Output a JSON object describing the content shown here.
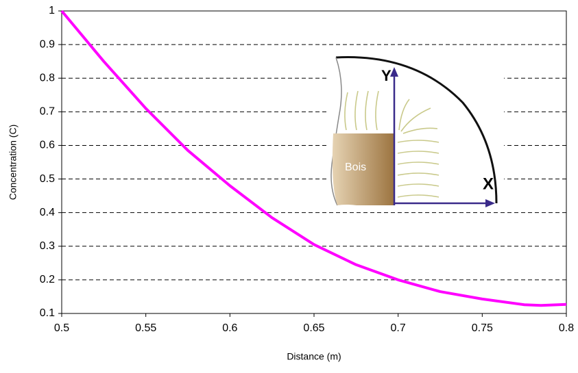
{
  "chart_data": {
    "type": "line",
    "x_label": "Distance (m)",
    "y_label": "Concentration (C)",
    "x": [
      0.5,
      0.525,
      0.55,
      0.575,
      0.6,
      0.625,
      0.65,
      0.675,
      0.7,
      0.725,
      0.75,
      0.775,
      0.785,
      0.8
    ],
    "series": [
      {
        "color": "#ff00ff",
        "values": [
          1,
          0.85,
          0.71,
          0.585,
          0.48,
          0.385,
          0.305,
          0.245,
          0.2,
          0.165,
          0.143,
          0.126,
          0.124,
          0.127
        ]
      }
    ],
    "xlim": [
      0.5,
      0.8
    ],
    "xticks": [
      0.5,
      0.55,
      0.6,
      0.65,
      0.7,
      0.75,
      0.8
    ],
    "ylim": [
      0.1,
      1
    ],
    "yticks": [
      0.1,
      0.2,
      0.3,
      0.4,
      0.5,
      0.6,
      0.7,
      0.8,
      0.9,
      1
    ],
    "grid": true,
    "annotations": [
      "Y",
      "X",
      "Bois"
    ]
  }
}
